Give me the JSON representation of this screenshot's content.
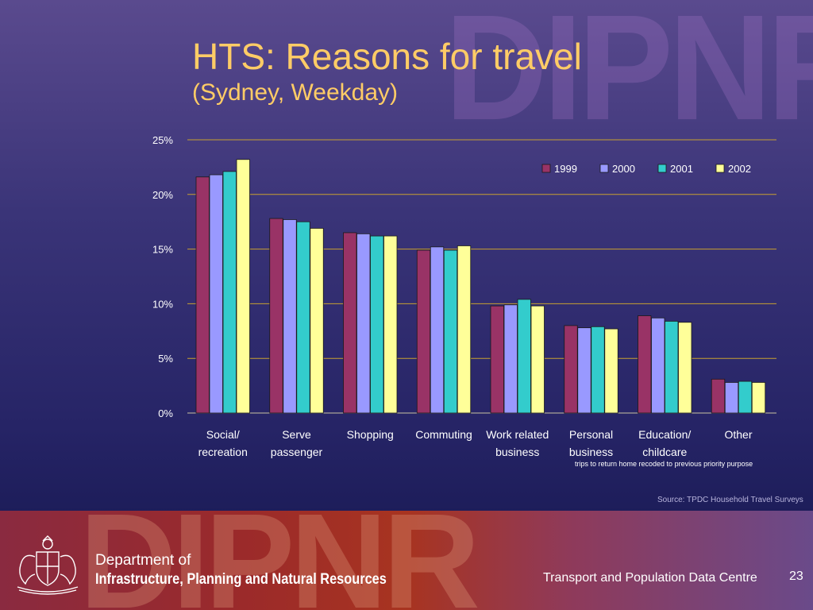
{
  "slide": {
    "title": "HTS: Reasons for travel",
    "subtitle": "(Sydney, Weekday)",
    "watermark": "DIPNR",
    "note": "trips to return home recoded to previous priority purpose",
    "source": "Source: TPDC Household Travel Surveys"
  },
  "footer": {
    "dept_line1": "Department of",
    "dept_line2": "Infrastructure, Planning and Natural Resources",
    "centre": "Transport and Population Data Centre",
    "page_number": "23",
    "watermark": "DIPNR"
  },
  "chart_data": {
    "type": "bar",
    "title": "",
    "xlabel": "",
    "ylabel": "",
    "ylim": [
      0,
      25
    ],
    "y_ticks": [
      "0%",
      "5%",
      "10%",
      "15%",
      "20%",
      "25%"
    ],
    "grid": true,
    "legend_position": "top-right",
    "categories": [
      [
        "Social/",
        "recreation"
      ],
      [
        "Serve",
        "passenger"
      ],
      [
        "Shopping"
      ],
      [
        "Commuting"
      ],
      [
        "Work related",
        "business"
      ],
      [
        "Personal",
        "business"
      ],
      [
        "Education/",
        "childcare"
      ],
      [
        "Other"
      ]
    ],
    "series": [
      {
        "name": "1999",
        "color": "#993366",
        "values": [
          21.6,
          17.8,
          16.5,
          14.9,
          9.8,
          8.0,
          8.9,
          3.1
        ]
      },
      {
        "name": "2000",
        "color": "#9999ff",
        "values": [
          21.8,
          17.7,
          16.4,
          15.2,
          9.9,
          7.8,
          8.7,
          2.8
        ]
      },
      {
        "name": "2001",
        "color": "#33cccc",
        "values": [
          22.1,
          17.5,
          16.2,
          14.9,
          10.4,
          7.9,
          8.4,
          2.9
        ]
      },
      {
        "name": "2002",
        "color": "#ffff99",
        "values": [
          23.2,
          16.9,
          16.2,
          15.3,
          9.8,
          7.7,
          8.3,
          2.8
        ]
      }
    ]
  }
}
